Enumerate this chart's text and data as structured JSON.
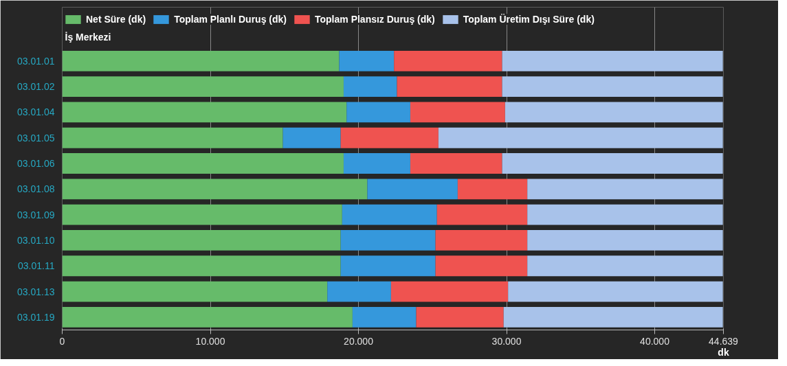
{
  "chart_data": {
    "type": "bar",
    "orientation": "horizontal",
    "stacked": true,
    "ylabel": "İş Merkezi",
    "xlabel": "dk",
    "categories": [
      "03.01.01",
      "03.01.02",
      "03.01.04",
      "03.01.05",
      "03.01.06",
      "03.01.08",
      "03.01.09",
      "03.01.10",
      "03.01.11",
      "03.01.13",
      "03.01.19"
    ],
    "series": [
      {
        "name": "Net Süre (dk)",
        "color": "#66bb6a",
        "values": [
          18700,
          19000,
          19200,
          14900,
          19000,
          20600,
          18900,
          18800,
          18800,
          17900,
          19600
        ]
      },
      {
        "name": "Toplam Planlı Duruş (dk)",
        "color": "#3598dc",
        "values": [
          3700,
          3600,
          4300,
          3900,
          4500,
          6100,
          6400,
          6400,
          6400,
          4300,
          4300
        ]
      },
      {
        "name": "Toplam Plansız Duruş (dk)",
        "color": "#ef5350",
        "values": [
          7300,
          7100,
          6400,
          6600,
          6200,
          4700,
          6100,
          6200,
          6200,
          7900,
          5900
        ]
      },
      {
        "name": "Toplam Üretim Dışı Süre (dk)",
        "color": "#a8c2ea",
        "values": [
          14900,
          14900,
          14700,
          19200,
          14900,
          13200,
          13200,
          13200,
          13200,
          14500,
          14800
        ]
      }
    ],
    "xlim": [
      0,
      44639
    ],
    "xticks": [
      0,
      {
        "value": 10000,
        "label": "10.000"
      },
      {
        "value": 20000,
        "label": "20.000"
      },
      {
        "value": 30000,
        "label": "30.000"
      },
      {
        "value": 40000,
        "label": "40.000"
      },
      {
        "value": 44639,
        "label": "44.639"
      }
    ],
    "grid": "x",
    "legend": "top left"
  }
}
